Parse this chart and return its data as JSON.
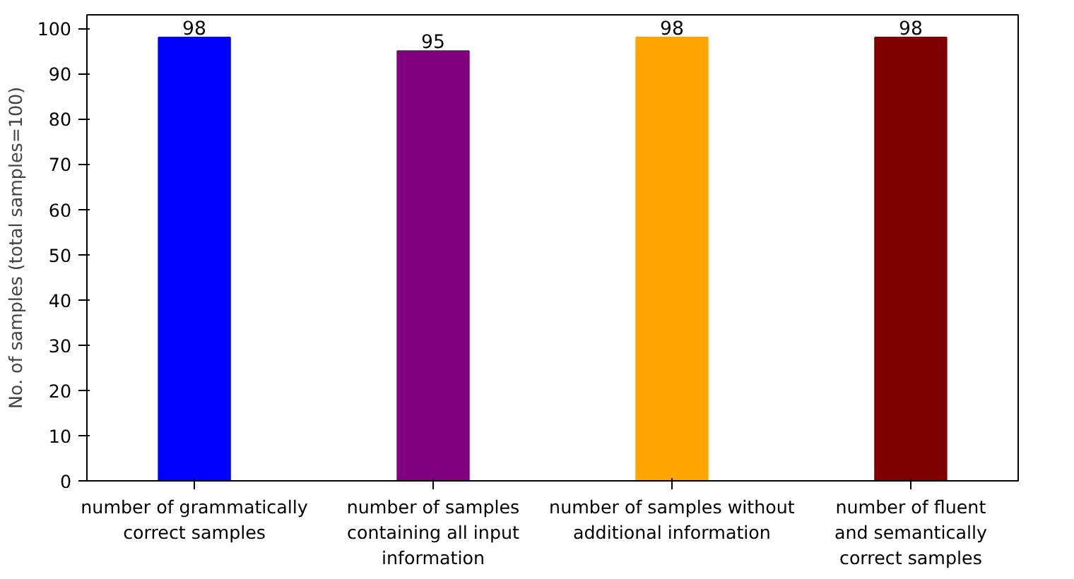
{
  "chart_data": {
    "type": "bar",
    "ylabel": "No. of samples (total samples=100)",
    "categories": [
      "number of grammatically\ncorrect samples",
      "number of samples\ncontaining all input\ninformation",
      "number of samples without\nadditional information",
      "number of fluent\nand semantically\ncorrect samples"
    ],
    "values": [
      98,
      95,
      98,
      98
    ],
    "colors": [
      "#0000ff",
      "#800080",
      "#ffa500",
      "#800000"
    ],
    "ylim": [
      0,
      103
    ],
    "yticks": [
      0,
      10,
      20,
      30,
      40,
      50,
      60,
      70,
      80,
      90,
      100
    ],
    "data_labels": true,
    "grid": false
  }
}
